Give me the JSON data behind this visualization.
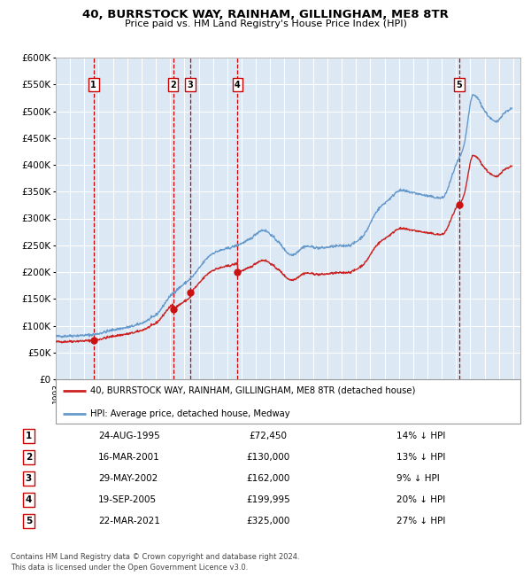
{
  "title": "40, BURRSTOCK WAY, RAINHAM, GILLINGHAM, ME8 8TR",
  "subtitle": "Price paid vs. HM Land Registry's House Price Index (HPI)",
  "sale_dates_decimal": [
    1995.647,
    2001.206,
    2002.411,
    2005.716,
    2021.22
  ],
  "sale_prices": [
    72450,
    130000,
    162000,
    199995,
    325000
  ],
  "sale_labels": [
    "1",
    "2",
    "3",
    "4",
    "5"
  ],
  "sale_pct_below": [
    "14%",
    "13%",
    "9%",
    "20%",
    "27%"
  ],
  "sale_date_strs": [
    "24-AUG-1995",
    "16-MAR-2001",
    "29-MAY-2002",
    "19-SEP-2005",
    "22-MAR-2021"
  ],
  "sale_price_strs": [
    "£72,450",
    "£130,000",
    "£162,000",
    "£199,995",
    "£325,000"
  ],
  "hpi_color": "#6699cc",
  "price_color": "#cc2222",
  "marker_color": "#cc1111",
  "vline_color": "#cc0000",
  "bg_color": "#dce9f5",
  "grid_color": "#ffffff",
  "ylim": [
    0,
    600000
  ],
  "yticks": [
    0,
    50000,
    100000,
    150000,
    200000,
    250000,
    300000,
    350000,
    400000,
    450000,
    500000,
    550000,
    600000
  ],
  "footer": "Contains HM Land Registry data © Crown copyright and database right 2024.\nThis data is licensed under the Open Government Licence v3.0.",
  "legend_label_price": "40, BURRSTOCK WAY, RAINHAM, GILLINGHAM, ME8 8TR (detached house)",
  "legend_label_hpi": "HPI: Average price, detached house, Medway"
}
